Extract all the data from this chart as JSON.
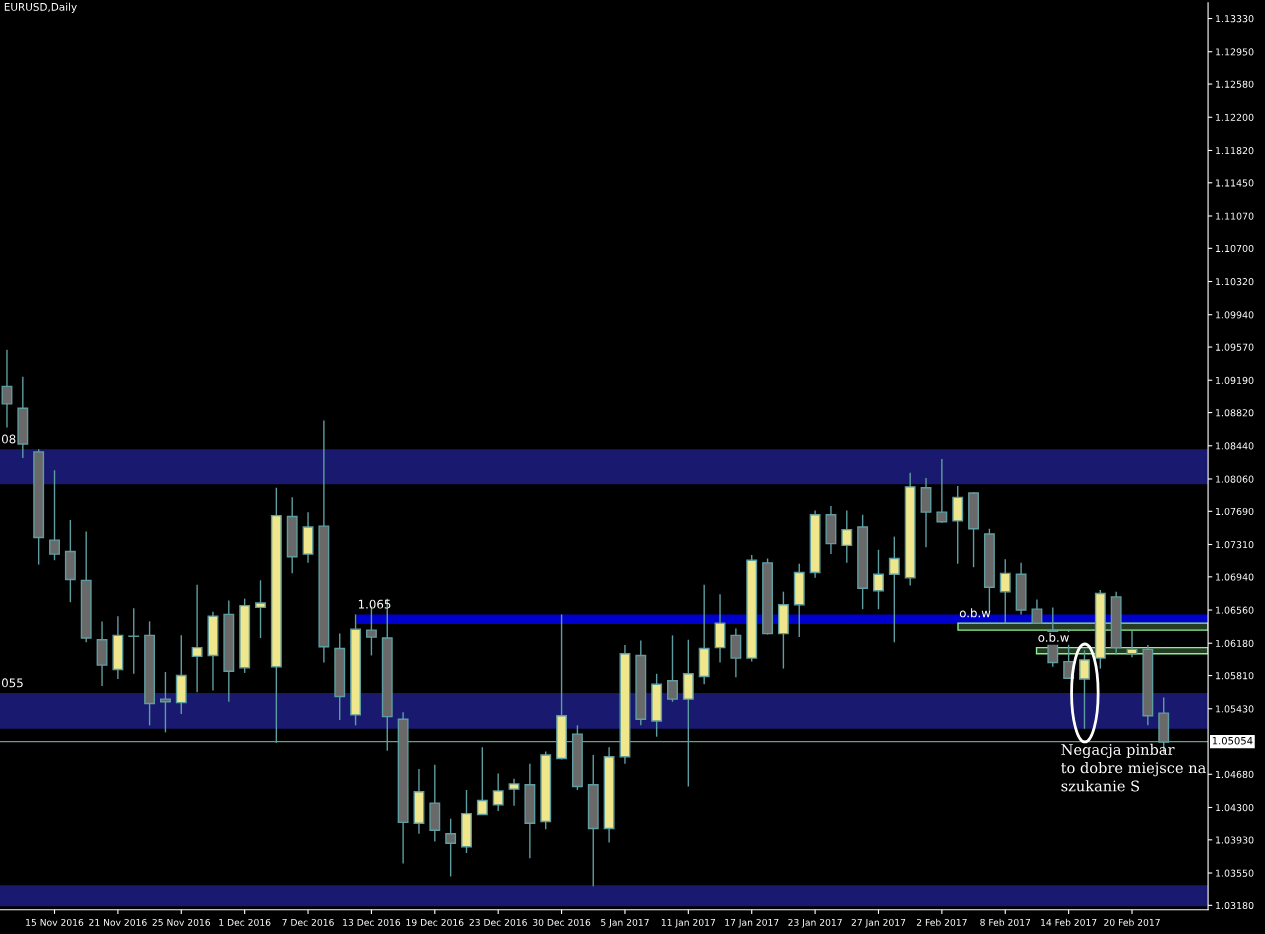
{
  "chart_data": {
    "type": "candlestick",
    "title": "EURUSD,Daily",
    "categories": [
      null,
      null,
      null,
      "15 Nov 2016",
      null,
      null,
      null,
      "21 Nov 2016",
      null,
      null,
      null,
      "25 Nov 2016",
      null,
      null,
      null,
      "1 Dec 2016",
      null,
      null,
      null,
      "7 Dec 2016",
      null,
      null,
      null,
      "13 Dec 2016",
      null,
      null,
      null,
      "19 Dec 2016",
      null,
      null,
      null,
      "23 Dec 2016",
      null,
      null,
      null,
      "30 Dec 2016",
      null,
      null,
      null,
      "5 Jan 2017",
      null,
      null,
      null,
      "11 Jan 2017",
      null,
      null,
      null,
      "17 Jan 2017",
      null,
      null,
      null,
      "23 Jan 2017",
      null,
      null,
      null,
      "27 Jan 2017",
      null,
      null,
      null,
      "2 Feb 2017",
      null,
      null,
      null,
      "8 Feb 2017",
      null,
      null,
      null,
      "14 Feb 2017",
      null,
      null,
      null,
      "20 Feb 2017",
      null,
      null
    ],
    "ohlc": [
      [
        1.0912,
        1.0954,
        1.0865,
        1.0892
      ],
      [
        1.0887,
        1.0923,
        1.083,
        1.0846
      ],
      [
        1.0837,
        1.084,
        1.0708,
        1.0739
      ],
      [
        1.0736,
        1.0816,
        1.0713,
        1.072
      ],
      [
        1.0723,
        1.0759,
        1.0665,
        1.0691
      ],
      [
        1.069,
        1.0746,
        1.0619,
        1.0624
      ],
      [
        1.0622,
        1.0643,
        1.0569,
        1.0593
      ],
      [
        1.0588,
        1.0649,
        1.0577,
        1.0627
      ],
      [
        1.0626,
        1.0658,
        1.0583,
        1.0626
      ],
      [
        1.0627,
        1.0643,
        1.0524,
        1.0549
      ],
      [
        1.0554,
        1.0585,
        1.0516,
        1.0551
      ],
      [
        1.055,
        1.0627,
        1.0537,
        1.0581
      ],
      [
        1.0603,
        1.0685,
        1.0562,
        1.0613
      ],
      [
        1.0604,
        1.0654,
        1.0564,
        1.0649
      ],
      [
        1.0651,
        1.0667,
        1.0551,
        1.0586
      ],
      [
        1.059,
        1.0669,
        1.0584,
        1.0661
      ],
      [
        1.0659,
        1.069,
        1.0624,
        1.0664
      ],
      [
        1.0591,
        1.0796,
        1.0504,
        1.0764
      ],
      [
        1.0763,
        1.0785,
        1.0698,
        1.0717
      ],
      [
        1.072,
        1.0768,
        1.071,
        1.0751
      ],
      [
        1.0752,
        1.0873,
        1.0596,
        1.0614
      ],
      [
        1.0612,
        1.0629,
        1.053,
        1.0557
      ],
      [
        1.0536,
        1.0651,
        1.0524,
        1.0634
      ],
      [
        1.0633,
        1.066,
        1.0604,
        1.0625
      ],
      [
        1.0624,
        1.0669,
        1.0495,
        1.0534
      ],
      [
        1.0531,
        1.0539,
        1.0366,
        1.0413
      ],
      [
        1.0412,
        1.0474,
        1.04,
        1.0448
      ],
      [
        1.0435,
        1.0479,
        1.0391,
        1.0404
      ],
      [
        1.04,
        1.0417,
        1.0351,
        1.0389
      ],
      [
        1.0385,
        1.045,
        1.0378,
        1.0423
      ],
      [
        1.0422,
        1.0499,
        1.0422,
        1.0438
      ],
      [
        1.0433,
        1.0469,
        1.0426,
        1.0449
      ],
      [
        1.0451,
        1.0463,
        1.0432,
        1.0457
      ],
      [
        1.0456,
        1.048,
        1.0372,
        1.0412
      ],
      [
        1.0414,
        1.0494,
        1.0405,
        1.049
      ],
      [
        1.0486,
        1.0651,
        1.0485,
        1.0535
      ],
      [
        1.0514,
        1.0524,
        1.045,
        1.0454
      ],
      [
        1.0456,
        1.049,
        1.034,
        1.0406
      ],
      [
        1.0406,
        1.0499,
        1.039,
        1.0488
      ],
      [
        1.0488,
        1.0616,
        1.048,
        1.0606
      ],
      [
        1.0604,
        1.0621,
        1.0524,
        1.0531
      ],
      [
        1.0529,
        1.0583,
        1.0511,
        1.0571
      ],
      [
        1.0575,
        1.0627,
        1.0551,
        1.0554
      ],
      [
        1.0554,
        1.0622,
        1.0454,
        1.0583
      ],
      [
        1.058,
        1.0685,
        1.0571,
        1.0612
      ],
      [
        1.0613,
        1.0674,
        1.0596,
        1.0641
      ],
      [
        1.0627,
        1.0635,
        1.0579,
        1.0601
      ],
      [
        1.0601,
        1.0719,
        1.0597,
        1.0713
      ],
      [
        1.071,
        1.0715,
        1.0628,
        1.0629
      ],
      [
        1.0629,
        1.0677,
        1.0589,
        1.0662
      ],
      [
        1.0662,
        1.0709,
        1.0625,
        1.0699
      ],
      [
        1.0699,
        1.077,
        1.0693,
        1.0765
      ],
      [
        1.0765,
        1.0775,
        1.072,
        1.0732
      ],
      [
        1.073,
        1.077,
        1.071,
        1.0748
      ],
      [
        1.0751,
        1.0765,
        1.0657,
        1.0681
      ],
      [
        1.0678,
        1.0725,
        1.0657,
        1.0697
      ],
      [
        1.0697,
        1.074,
        1.0619,
        1.0715
      ],
      [
        1.0693,
        1.0813,
        1.0684,
        1.0797
      ],
      [
        1.0796,
        1.0807,
        1.0728,
        1.0768
      ],
      [
        1.0768,
        1.0829,
        1.0756,
        1.0757
      ],
      [
        1.0758,
        1.0798,
        1.0709,
        1.0785
      ],
      [
        1.079,
        1.0791,
        1.0705,
        1.0749
      ],
      [
        1.0743,
        1.0749,
        1.0654,
        1.0682
      ],
      [
        1.0677,
        1.0714,
        1.0641,
        1.0698
      ],
      [
        1.0697,
        1.071,
        1.0651,
        1.0656
      ],
      [
        1.0657,
        1.0668,
        1.0641,
        1.0641
      ],
      [
        1.0632,
        1.0659,
        1.0591,
        1.0596
      ],
      [
        1.0597,
        1.0634,
        1.0578,
        1.0578
      ],
      [
        1.0577,
        1.061,
        1.052,
        1.0599
      ],
      [
        1.0601,
        1.0679,
        1.0589,
        1.0675
      ],
      [
        1.0671,
        1.0677,
        1.0605,
        1.0613
      ],
      [
        1.0606,
        1.0632,
        1.0602,
        1.0611
      ],
      [
        1.0611,
        1.0616,
        1.0524,
        1.0535
      ],
      [
        1.0538,
        1.0556,
        1.0492,
        1.0505
      ]
    ],
    "colors": [
      "#696969",
      "#696969",
      "#696969",
      "#696969",
      "#696969",
      "#696969",
      "#696969",
      "#f0e68c",
      "#5f9ea0",
      "#696969",
      "#696969",
      "#f0e68c",
      "#f0e68c",
      "#f0e68c",
      "#696969",
      "#f0e68c",
      "#f0e68c",
      "#f0e68c",
      "#696969",
      "#f0e68c",
      "#696969",
      "#696969",
      "#f0e68c",
      "#696969",
      "#696969",
      "#696969",
      "#f0e68c",
      "#696969",
      "#696969",
      "#f0e68c",
      "#f0e68c",
      "#f0e68c",
      "#f0e68c",
      "#696969",
      "#f0e68c",
      "#f0e68c",
      "#696969",
      "#696969",
      "#f0e68c",
      "#f0e68c",
      "#696969",
      "#f0e68c",
      "#696969",
      "#f0e68c",
      "#f0e68c",
      "#f0e68c",
      "#696969",
      "#f0e68c",
      "#696969",
      "#f0e68c",
      "#f0e68c",
      "#f0e68c",
      "#696969",
      "#f0e68c",
      "#696969",
      "#f0e68c",
      "#f0e68c",
      "#f0e68c",
      "#696969",
      "#696969",
      "#f0e68c",
      "#696969",
      "#696969",
      "#f0e68c",
      "#696969",
      "#696969",
      "#696969",
      "#696969",
      "#f0e68c",
      "#f0e68c",
      "#696969",
      "#f0e68c",
      "#696969",
      "#696969"
    ],
    "ylim": [
      1.0313,
      1.1351
    ],
    "yticks": [
      {
        "value": 1.1333,
        "label": "1.13330"
      },
      {
        "value": 1.1295,
        "label": "1.12950"
      },
      {
        "value": 1.1258,
        "label": "1.12580"
      },
      {
        "value": 1.122,
        "label": "1.12200"
      },
      {
        "value": 1.1182,
        "label": "1.11820"
      },
      {
        "value": 1.1145,
        "label": "1.11450"
      },
      {
        "value": 1.1107,
        "label": "1.11070"
      },
      {
        "value": 1.107,
        "label": "1.10700"
      },
      {
        "value": 1.1032,
        "label": "1.10320"
      },
      {
        "value": 1.0994,
        "label": "1.09940"
      },
      {
        "value": 1.0957,
        "label": "1.09570"
      },
      {
        "value": 1.0919,
        "label": "1.09190"
      },
      {
        "value": 1.0882,
        "label": "1.08820"
      },
      {
        "value": 1.0844,
        "label": "1.08440"
      },
      {
        "value": 1.0806,
        "label": "1.08060"
      },
      {
        "value": 1.0769,
        "label": "1.07690"
      },
      {
        "value": 1.0731,
        "label": "1.07310"
      },
      {
        "value": 1.0694,
        "label": "1.06940"
      },
      {
        "value": 1.0656,
        "label": "1.06560"
      },
      {
        "value": 1.0618,
        "label": "1.06180"
      },
      {
        "value": 1.0581,
        "label": "1.05810"
      },
      {
        "value": 1.0543,
        "label": "1.05430"
      },
      {
        "value": 1.0468,
        "label": "1.04680"
      },
      {
        "value": 1.043,
        "label": "1.04300"
      },
      {
        "value": 1.0393,
        "label": "1.03930"
      },
      {
        "value": 1.0355,
        "label": "1.03550"
      },
      {
        "value": 1.0318,
        "label": "1.03180"
      }
    ],
    "bands": [
      {
        "axis": "y",
        "from": 1.08,
        "to": 1.084,
        "label": "08",
        "color": "#191970"
      },
      {
        "axis": "y",
        "from": 1.052,
        "to": 1.0561,
        "label": "055",
        "color": "#191970"
      },
      {
        "axis": "y",
        "from": 1.0317,
        "to": 1.0341,
        "color": "#191970"
      },
      {
        "axis": "y",
        "from": 1.064,
        "to": 1.0651,
        "label": "1.065",
        "color": "#0000cd"
      },
      {
        "axis": "y",
        "from": 1.0633,
        "to": 1.0641,
        "label": "o.b.w",
        "color": "#90ee90"
      },
      {
        "axis": "y",
        "from": 1.0606,
        "to": 1.0613,
        "label": "o.b.w",
        "color": "#90ee90"
      }
    ],
    "ref_lines": [
      {
        "axis": "y",
        "value": 1.05054,
        "label": "1.05054",
        "color": "#5f9ea0"
      }
    ],
    "annotations": [
      "Negacja pinbar\nto dobre miejsce na\nszukanie S"
    ],
    "grid": false
  }
}
